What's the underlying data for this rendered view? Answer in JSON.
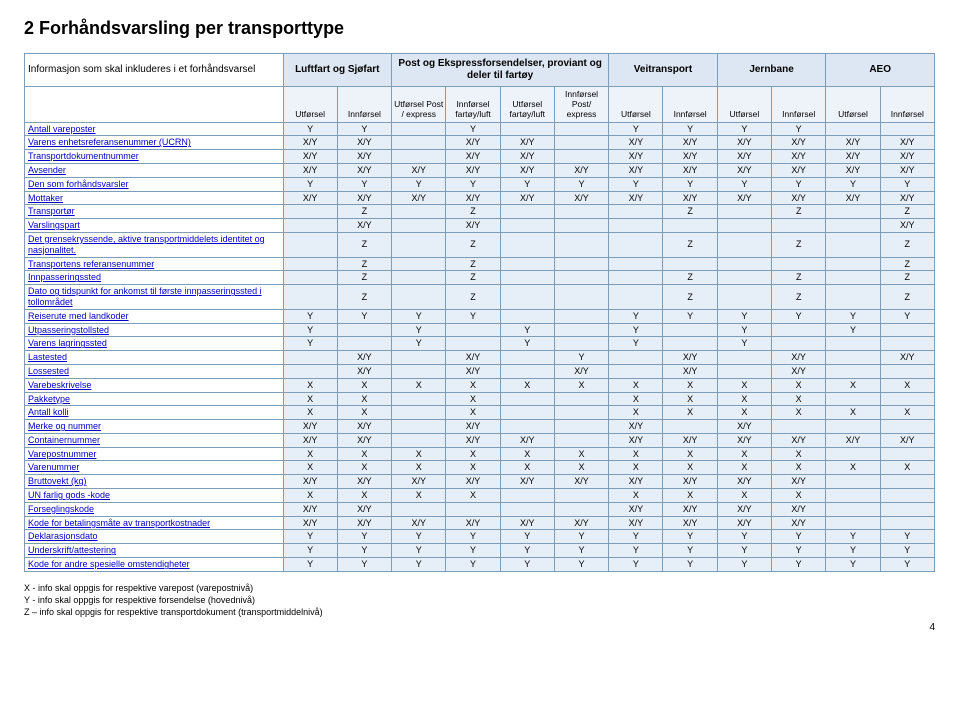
{
  "title": "2  Forhåndsvarsling per transporttype",
  "header_row1": [
    "Informasjon som skal inkluderes i et forhåndsvarsel",
    "Luftfart og Sjøfart",
    "Post og Ekspressforsendelser, proviant og deler til fartøy",
    "Veitransport",
    "Jernbane",
    "AEO"
  ],
  "header_row2": [
    "",
    "Utførsel",
    "Innførsel",
    "Utførsel Post / express",
    "Innførsel fartøy/luft",
    "Utførsel fartøy/luft",
    "Innførsel Post/ express",
    "Utførsel",
    "Innførsel",
    "Utførsel",
    "Innførsel",
    "Utførsel",
    "Innførsel"
  ],
  "rows": [
    {
      "label": "Antall vareposter",
      "v": [
        "Y",
        "Y",
        "",
        "Y",
        "",
        "",
        "Y",
        "Y",
        "Y",
        "Y",
        "",
        ""
      ]
    },
    {
      "label": "Varens enhetsreferansenummer (UCRN)",
      "v": [
        "X/Y",
        "X/Y",
        "",
        "X/Y",
        "X/Y",
        "",
        "X/Y",
        "X/Y",
        "X/Y",
        "X/Y",
        "X/Y",
        "X/Y"
      ]
    },
    {
      "label": "Transportdokumentnummer",
      "v": [
        "X/Y",
        "X/Y",
        "",
        "X/Y",
        "X/Y",
        "",
        "X/Y",
        "X/Y",
        "X/Y",
        "X/Y",
        "X/Y",
        "X/Y"
      ]
    },
    {
      "label": "Avsender",
      "v": [
        "X/Y",
        "X/Y",
        "X/Y",
        "X/Y",
        "X/Y",
        "X/Y",
        "X/Y",
        "X/Y",
        "X/Y",
        "X/Y",
        "X/Y",
        "X/Y"
      ]
    },
    {
      "label": "Den som forhåndsvarsler",
      "v": [
        "Y",
        "Y",
        "Y",
        "Y",
        "Y",
        "Y",
        "Y",
        "Y",
        "Y",
        "Y",
        "Y",
        "Y"
      ]
    },
    {
      "label": "Mottaker",
      "v": [
        "X/Y",
        "X/Y",
        "X/Y",
        "X/Y",
        "X/Y",
        "X/Y",
        "X/Y",
        "X/Y",
        "X/Y",
        "X/Y",
        "X/Y",
        "X/Y"
      ]
    },
    {
      "label": "Transportør",
      "v": [
        "",
        "Z",
        "",
        "Z",
        "",
        "",
        "",
        "Z",
        "",
        "Z",
        "",
        "Z"
      ]
    },
    {
      "label": "Varslingspart",
      "v": [
        "",
        "X/Y",
        "",
        "X/Y",
        "",
        "",
        "",
        "",
        "",
        "",
        "",
        "X/Y"
      ]
    },
    {
      "label": "Det grensekryssende, aktive transportmiddelets identitet og nasjonalitet.",
      "v": [
        "",
        "Z",
        "",
        "Z",
        "",
        "",
        "",
        "Z",
        "",
        "Z",
        "",
        "Z"
      ]
    },
    {
      "label": "Transportens referansenummer",
      "v": [
        "",
        "Z",
        "",
        "Z",
        "",
        "",
        "",
        "",
        "",
        "",
        "",
        "Z"
      ]
    },
    {
      "label": "Innpasseringssted",
      "v": [
        "",
        "Z",
        "",
        "Z",
        "",
        "",
        "",
        "Z",
        "",
        "Z",
        "",
        "Z"
      ]
    },
    {
      "label": "Dato og tidspunkt for ankomst til første innpasseringssted i tollområdet",
      "v": [
        "",
        "Z",
        "",
        "Z",
        "",
        "",
        "",
        "Z",
        "",
        "Z",
        "",
        "Z"
      ]
    },
    {
      "label": "Reiserute med landkoder",
      "v": [
        "Y",
        "Y",
        "Y",
        "Y",
        "",
        "",
        "Y",
        "Y",
        "Y",
        "Y",
        "Y",
        "Y"
      ]
    },
    {
      "label": "Utpasseringstollsted",
      "v": [
        "Y",
        "",
        "Y",
        "",
        "Y",
        "",
        "Y",
        "",
        "Y",
        "",
        "Y",
        ""
      ]
    },
    {
      "label": "Varens lagringssted",
      "v": [
        "Y",
        "",
        "Y",
        "",
        "Y",
        "",
        "Y",
        "",
        "Y",
        "",
        "",
        ""
      ]
    },
    {
      "label": "Lastested",
      "v": [
        "",
        "X/Y",
        "",
        "X/Y",
        "",
        "Y",
        "",
        "X/Y",
        "",
        "X/Y",
        "",
        "X/Y"
      ]
    },
    {
      "label": "Lossested",
      "v": [
        "",
        "X/Y",
        "",
        "X/Y",
        "",
        "X/Y",
        "",
        "X/Y",
        "",
        "X/Y",
        "",
        ""
      ]
    },
    {
      "label": "Varebeskrivelse",
      "v": [
        "X",
        "X",
        "X",
        "X",
        "X",
        "X",
        "X",
        "X",
        "X",
        "X",
        "X",
        "X"
      ]
    },
    {
      "label": "Pakketype",
      "v": [
        "X",
        "X",
        "",
        "X",
        "",
        "",
        "X",
        "X",
        "X",
        "X",
        "",
        ""
      ]
    },
    {
      "label": "Antall kolli",
      "v": [
        "X",
        "X",
        "",
        "X",
        "",
        "",
        "X",
        "X",
        "X",
        "X",
        "X",
        "X"
      ]
    },
    {
      "label": "Merke og nummer",
      "v": [
        "X/Y",
        "X/Y",
        "",
        "X/Y",
        "",
        "",
        "X/Y",
        "",
        "X/Y",
        "",
        "",
        ""
      ]
    },
    {
      "label": "Containernummer",
      "v": [
        "X/Y",
        "X/Y",
        "",
        "X/Y",
        "X/Y",
        "",
        "X/Y",
        "X/Y",
        "X/Y",
        "X/Y",
        "X/Y",
        "X/Y"
      ]
    },
    {
      "label": "Varepostnummer",
      "v": [
        "X",
        "X",
        "X",
        "X",
        "X",
        "X",
        "X",
        "X",
        "X",
        "X",
        "",
        ""
      ]
    },
    {
      "label": "Varenummer",
      "v": [
        "X",
        "X",
        "X",
        "X",
        "X",
        "X",
        "X",
        "X",
        "X",
        "X",
        "X",
        "X"
      ]
    },
    {
      "label": "Bruttovekt (kg)",
      "v": [
        "X/Y",
        "X/Y",
        "X/Y",
        "X/Y",
        "X/Y",
        "X/Y",
        "X/Y",
        "X/Y",
        "X/Y",
        "X/Y",
        "",
        ""
      ]
    },
    {
      "label": "UN farlig gods -kode",
      "v": [
        "X",
        "X",
        "X",
        "X",
        "",
        "",
        "X",
        "X",
        "X",
        "X",
        "",
        ""
      ]
    },
    {
      "label": "Forseglingskode",
      "v": [
        "X/Y",
        "X/Y",
        "",
        "",
        "",
        "",
        "X/Y",
        "X/Y",
        "X/Y",
        "X/Y",
        "",
        ""
      ]
    },
    {
      "label": "Kode for betalingsmåte av transportkostnader",
      "v": [
        "X/Y",
        "X/Y",
        "X/Y",
        "X/Y",
        "X/Y",
        "X/Y",
        "X/Y",
        "X/Y",
        "X/Y",
        "X/Y",
        "",
        ""
      ]
    },
    {
      "label": "Deklarasjonsdato",
      "v": [
        "Y",
        "Y",
        "Y",
        "Y",
        "Y",
        "Y",
        "Y",
        "Y",
        "Y",
        "Y",
        "Y",
        "Y"
      ]
    },
    {
      "label": "Underskrift/attestering",
      "v": [
        "Y",
        "Y",
        "Y",
        "Y",
        "Y",
        "Y",
        "Y",
        "Y",
        "Y",
        "Y",
        "Y",
        "Y"
      ]
    },
    {
      "label": "Kode for andre spesielle omstendigheter",
      "v": [
        "Y",
        "Y",
        "Y",
        "Y",
        "Y",
        "Y",
        "Y",
        "Y",
        "Y",
        "Y",
        "Y",
        "Y"
      ]
    }
  ],
  "legend": [
    "X - info skal oppgis for respektive varepost (varepostnivå)",
    "Y - info skal oppgis for respektive forsendelse (hovednivå)",
    "Z – info skal oppgis for respektive transportdokument (transportmiddelnivå)"
  ],
  "pagenum": "4"
}
